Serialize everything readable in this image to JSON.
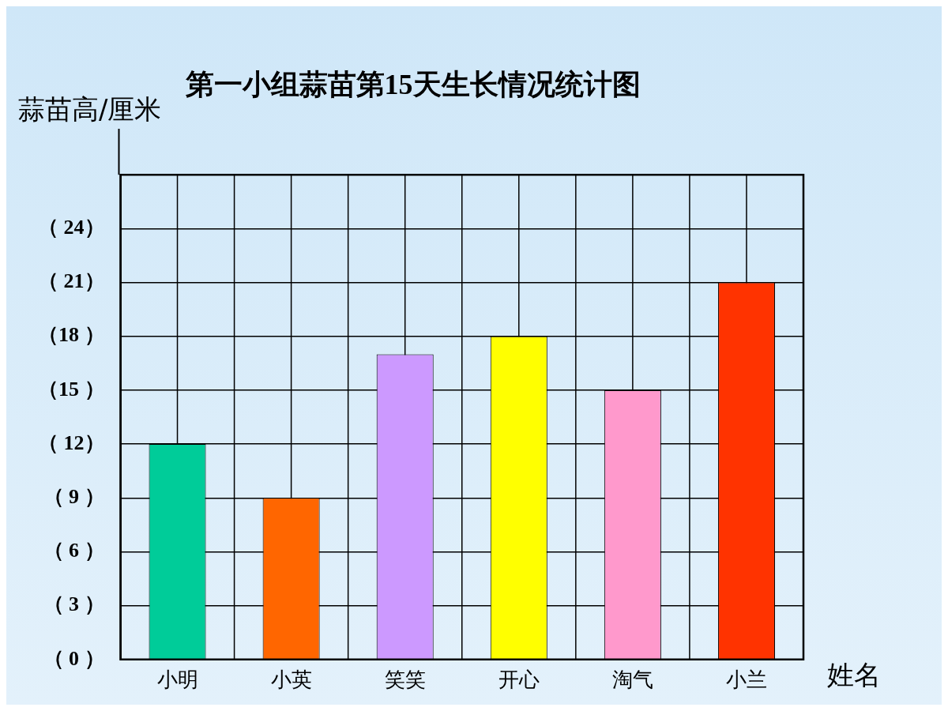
{
  "chart_data": {
    "type": "bar",
    "title": "第一小组蒜苗第15天生长情况统计图",
    "xlabel": "姓名",
    "ylabel": "蒜苗高/厘米",
    "categories": [
      "小明",
      "小英",
      "笑笑",
      "开心",
      "淘气",
      "小兰"
    ],
    "values": [
      12,
      9,
      17,
      18,
      15,
      21
    ],
    "colors": [
      "#00cc99",
      "#ff6600",
      "#cc99ff",
      "#ffff00",
      "#ff99cc",
      "#ff3300"
    ],
    "ylim": [
      0,
      27
    ],
    "yticks": [
      {
        "value": 0,
        "label": "（ 0 ）"
      },
      {
        "value": 3,
        "label": "（ 3 ）"
      },
      {
        "value": 6,
        "label": "（ 6 ）"
      },
      {
        "value": 9,
        "label": "（ 9 ）"
      },
      {
        "value": 12,
        "label": "（ 12）"
      },
      {
        "value": 15,
        "label": "（15 ）"
      },
      {
        "value": 18,
        "label": "（18 ）"
      },
      {
        "value": 21,
        "label": "（ 21）"
      },
      {
        "value": 24,
        "label": "（ 24）"
      }
    ],
    "grid": true,
    "legend": false
  }
}
